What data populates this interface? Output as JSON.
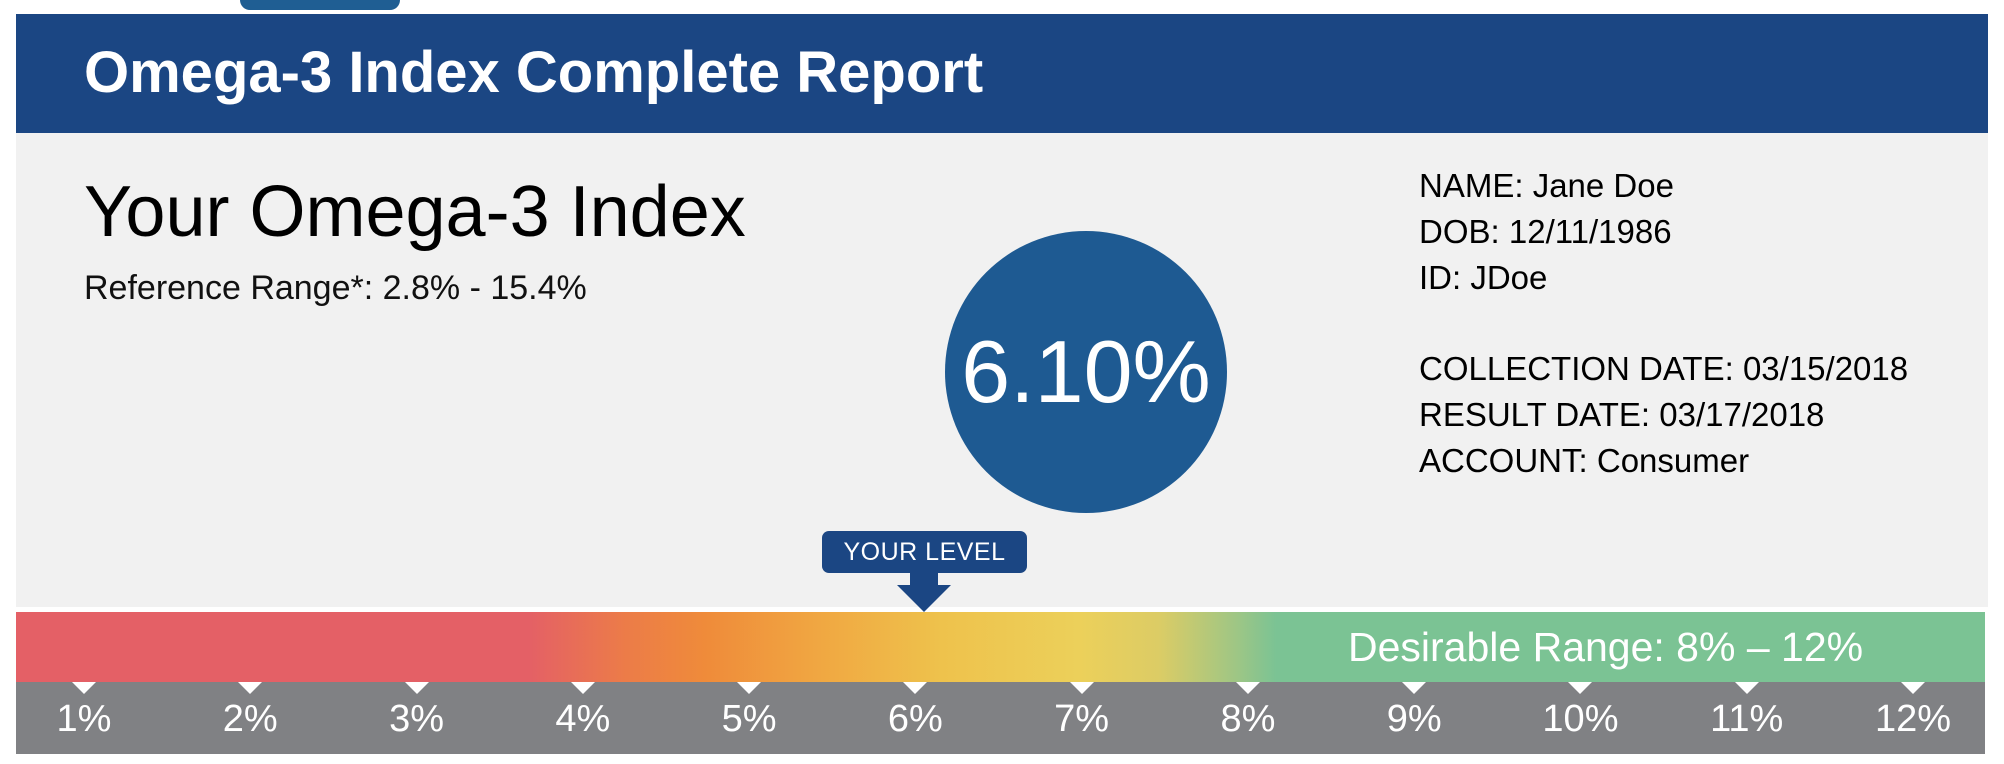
{
  "header": {
    "title": "Omega-3 Index Complete Report"
  },
  "main": {
    "title": "Your Omega-3 Index",
    "reference_label": "Reference Range*:",
    "reference_value": "2.8% - 15.4%",
    "result": "6.10%",
    "result_value": 6.1
  },
  "patient": {
    "name_label": "NAME:",
    "name": "Jane Doe",
    "dob_label": "DOB:",
    "dob": "12/11/1986",
    "id_label": "ID:",
    "id": "JDoe",
    "collection_label": "COLLECTION DATE:",
    "collection_date": "03/15/2018",
    "result_date_label": "RESULT DATE:",
    "result_date": "03/17/2018",
    "account_label": "ACCOUNT:",
    "account": "Consumer"
  },
  "scale": {
    "marker_label": "YOUR LEVEL",
    "desirable_label": "Desirable Range: 8% – 12%",
    "ticks": [
      "1%",
      "2%",
      "3%",
      "4%",
      "5%",
      "6%",
      "7%",
      "8%",
      "9%",
      "10%",
      "11%",
      "12%"
    ],
    "colors": {
      "low": "#e46066",
      "mid": "#ef8b3a",
      "yellow": "#ecd05a",
      "desirable": "#7bc394",
      "axis": "#808184",
      "brand": "#1b4683"
    }
  }
}
